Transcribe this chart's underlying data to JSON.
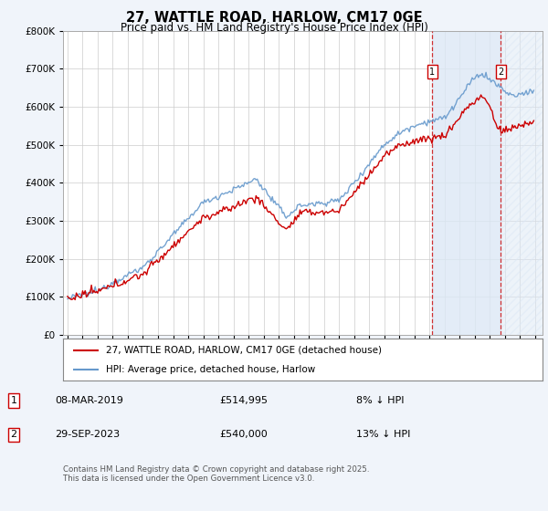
{
  "title": "27, WATTLE ROAD, HARLOW, CM17 0GE",
  "subtitle": "Price paid vs. HM Land Registry's House Price Index (HPI)",
  "ylim": [
    0,
    800000
  ],
  "xlim_start": 1994.7,
  "xlim_end": 2026.5,
  "hpi_color": "#6699cc",
  "price_color": "#cc0000",
  "marker1_date": 2019.18,
  "marker1_price": 514995,
  "marker1_label": "08-MAR-2019",
  "marker1_pct": "8% ↓ HPI",
  "marker2_date": 2023.74,
  "marker2_price": 540000,
  "marker2_label": "29-SEP-2023",
  "marker2_pct": "13% ↓ HPI",
  "legend_price_label": "27, WATTLE ROAD, HARLOW, CM17 0GE (detached house)",
  "legend_hpi_label": "HPI: Average price, detached house, Harlow",
  "footer": "Contains HM Land Registry data © Crown copyright and database right 2025.\nThis data is licensed under the Open Government Licence v3.0.",
  "background_color": "#f0f4fa",
  "plot_bg_color": "#ffffff",
  "shade_color": "#dce8f5"
}
